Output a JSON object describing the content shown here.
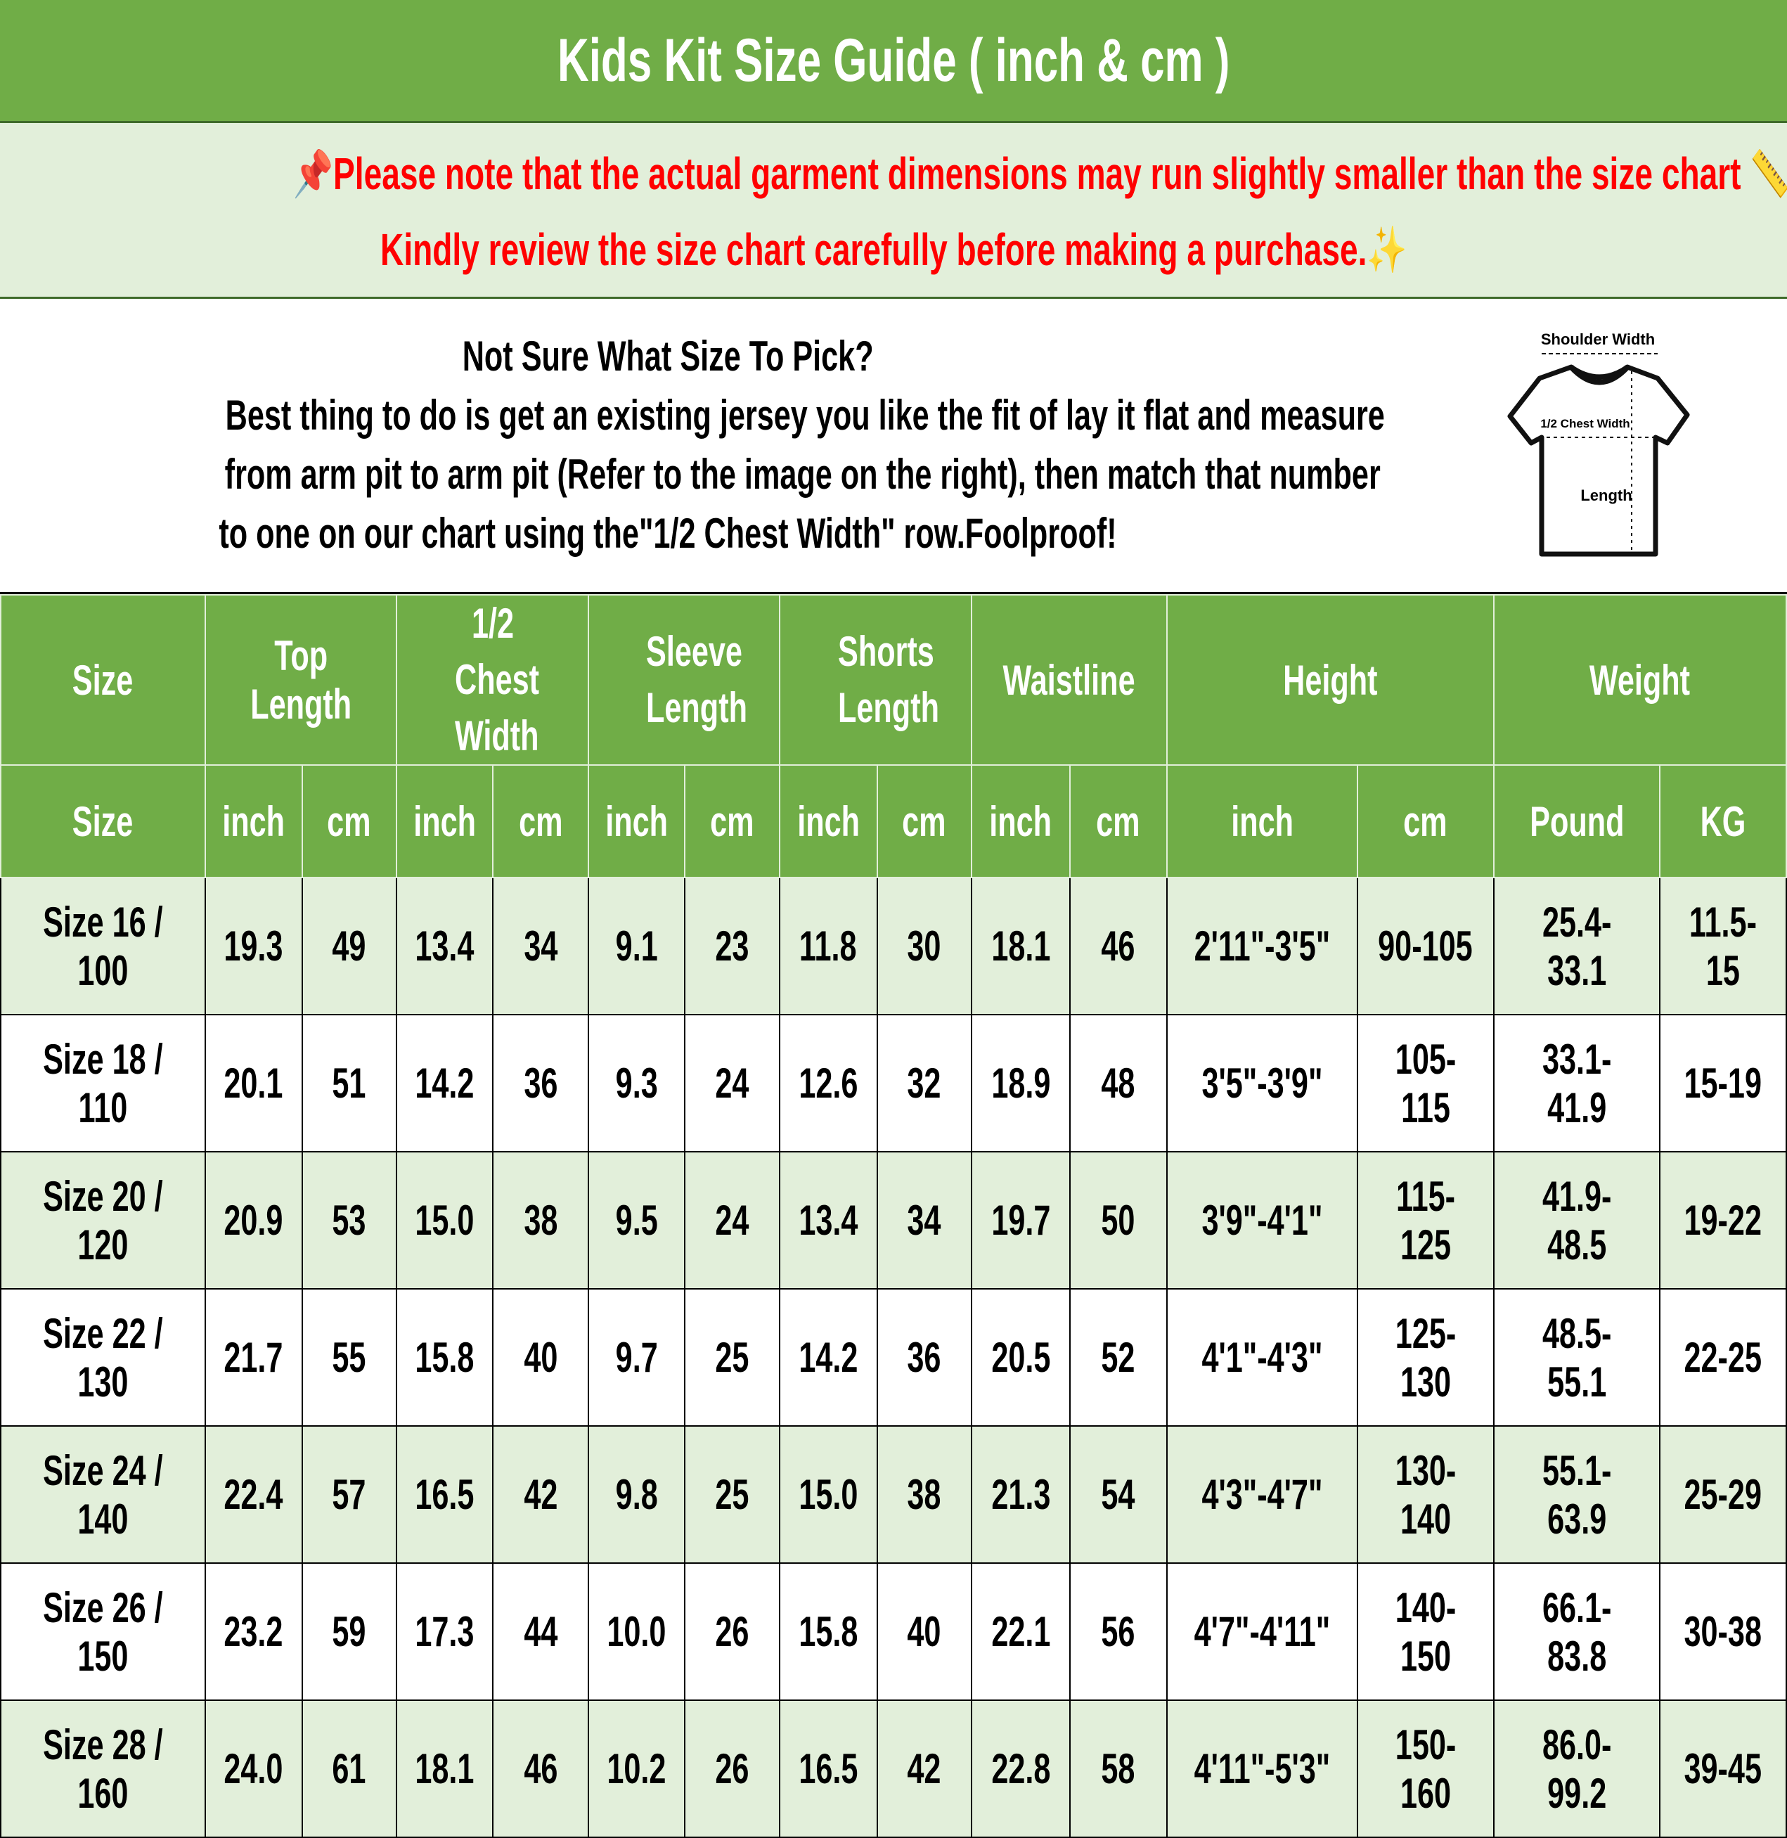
{
  "title": "Kids Kit Size Guide ( inch & cm )",
  "notice": {
    "line1": "📌Please note that the actual garment dimensions may run slightly smaller than the size chart 📏.",
    "line2": "Kindly review the size chart carefully before making a purchase.✨",
    "color": "#ff0000"
  },
  "info": {
    "heading": "Not Sure What Size To Pick?",
    "line1": "Best thing to do is get an existing jersey you like the fit of lay it flat and measure",
    "line2": "from arm pit to arm pit (Refer to the image on the right), then match that number",
    "line3": "to one on our chart using the\"1/2 Chest Width\" row.Foolproof!"
  },
  "diagram": {
    "shoulder": "Shoulder Width",
    "chest": "1/2 Chest Width",
    "length": "Length"
  },
  "colors": {
    "header_green": "#70ad47",
    "row_alt": "#e2efda"
  },
  "table": {
    "groups": [
      "Size",
      "Top Length",
      "1/2 Chest Width",
      "Sleeve Length",
      "Shorts Length",
      "Waistline",
      "Height",
      "Weight"
    ],
    "units": [
      "Size",
      "inch",
      "cm",
      "inch",
      "cm",
      "inch",
      "cm",
      "inch",
      "cm",
      "inch",
      "cm",
      "inch",
      "cm",
      "Pound",
      "KG"
    ],
    "rows": [
      [
        "Size 16 / 100",
        "19.3",
        "49",
        "13.4",
        "34",
        "9.1",
        "23",
        "11.8",
        "30",
        "18.1",
        "46",
        "2'11\"-3'5\"",
        "90-105",
        "25.4-33.1",
        "11.5-15"
      ],
      [
        "Size 18 / 110",
        "20.1",
        "51",
        "14.2",
        "36",
        "9.3",
        "24",
        "12.6",
        "32",
        "18.9",
        "48",
        "3'5\"-3'9\"",
        "105-115",
        "33.1-41.9",
        "15-19"
      ],
      [
        "Size 20 / 120",
        "20.9",
        "53",
        "15.0",
        "38",
        "9.5",
        "24",
        "13.4",
        "34",
        "19.7",
        "50",
        "3'9\"-4'1\"",
        "115-125",
        "41.9-48.5",
        "19-22"
      ],
      [
        "Size 22 / 130",
        "21.7",
        "55",
        "15.8",
        "40",
        "9.7",
        "25",
        "14.2",
        "36",
        "20.5",
        "52",
        "4'1\"-4'3\"",
        "125-130",
        "48.5-55.1",
        "22-25"
      ],
      [
        "Size 24 / 140",
        "22.4",
        "57",
        "16.5",
        "42",
        "9.8",
        "25",
        "15.0",
        "38",
        "21.3",
        "54",
        "4'3\"-4'7\"",
        "130-140",
        "55.1-63.9",
        "25-29"
      ],
      [
        "Size 26 / 150",
        "23.2",
        "59",
        "17.3",
        "44",
        "10.0",
        "26",
        "15.8",
        "40",
        "22.1",
        "56",
        "4'7\"-4'11\"",
        "140-150",
        "66.1-83.8",
        "30-38"
      ],
      [
        "Size 28 / 160",
        "24.0",
        "61",
        "18.1",
        "46",
        "10.2",
        "26",
        "16.5",
        "42",
        "22.8",
        "58",
        "4'11\"-5'3\"",
        "150-160",
        "86.0-99.2",
        "39-45"
      ]
    ]
  }
}
